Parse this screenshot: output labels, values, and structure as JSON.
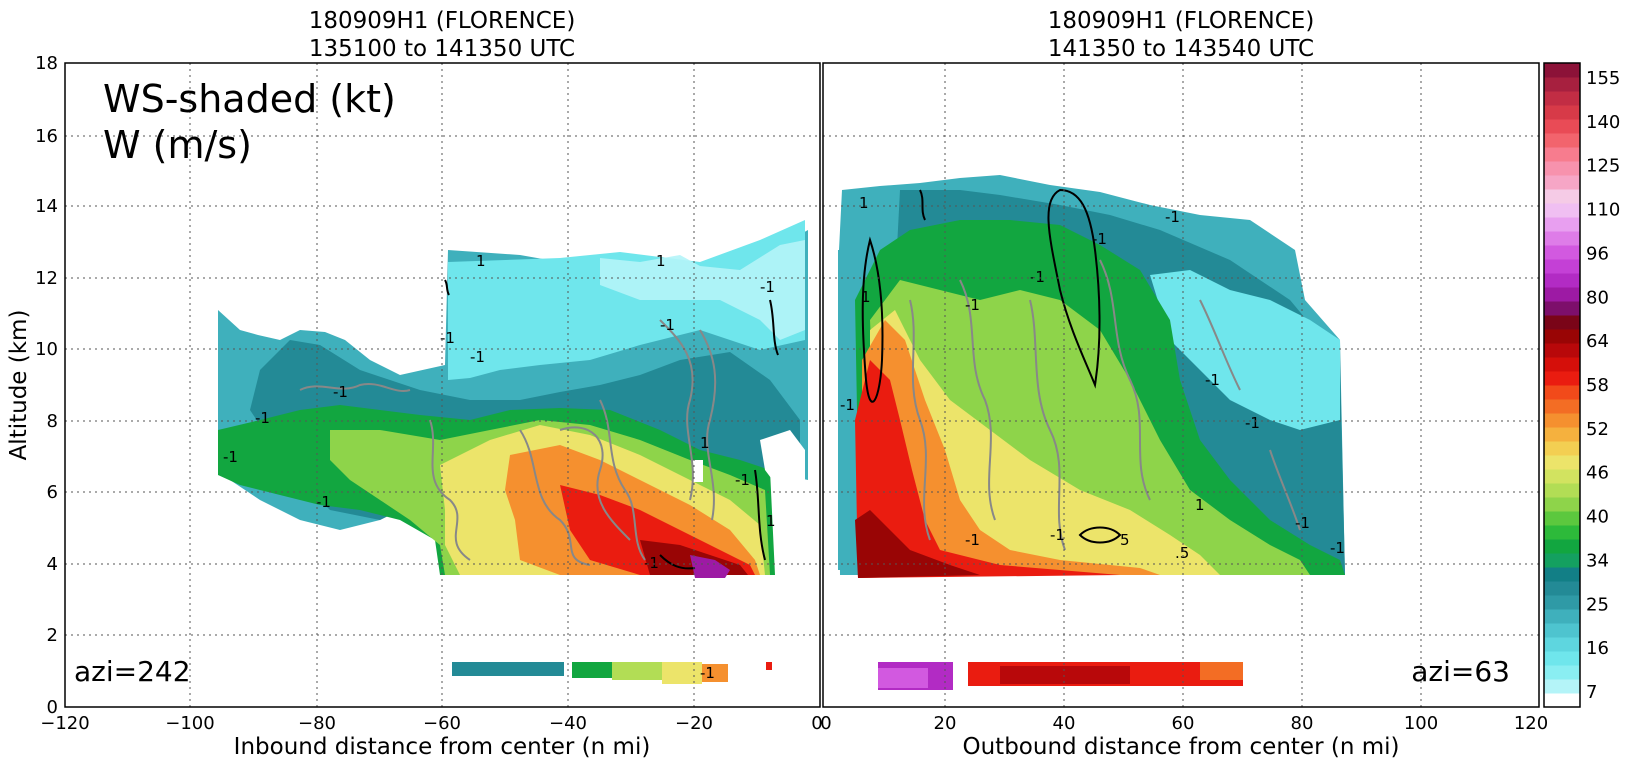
{
  "chart_data": [
    {
      "type": "heatmap",
      "title_line1": "180909H1 (FLORENCE)",
      "title_line2": "135100 to 141350 UTC",
      "annotation_line1": "WS-shaded (kt)",
      "annotation_line2": "W (m/s)",
      "corner_label": "azi=242",
      "xlabel": "Inbound distance from center (n mi)",
      "ylabel": "Altitude (km)",
      "xlim": [
        -120,
        0
      ],
      "ylim": [
        0,
        18
      ],
      "xticks": [
        "−120",
        "−100",
        "−80",
        "−60",
        "−40",
        "−20",
        "0"
      ],
      "yticks": [
        "0",
        "2",
        "4",
        "6",
        "8",
        "10",
        "12",
        "14",
        "16",
        "18"
      ],
      "grid": true,
      "contour_labels": [
        "1",
        "-1",
        "-1",
        "-1",
        "-1",
        "1",
        "-1",
        "-1",
        "-1",
        "-1",
        "1",
        "-1",
        "-1",
        "-1",
        "1"
      ]
    },
    {
      "type": "heatmap",
      "title_line1": "180909H1 (FLORENCE)",
      "title_line2": "141350 to 143540 UTC",
      "corner_label": "azi=63",
      "xlabel": "Outbound distance from center (n mi)",
      "xlim": [
        0,
        120
      ],
      "ylim": [
        0,
        18
      ],
      "xticks": [
        "0",
        "20",
        "40",
        "60",
        "80",
        "100",
        "120"
      ],
      "grid": true,
      "contour_labels": [
        "1",
        "1",
        "-1",
        "-1",
        "-1",
        "-1",
        "-1",
        "-1",
        "-1",
        "1",
        "-1",
        "5",
        "-1",
        "-1",
        "-1",
        ".5"
      ]
    }
  ],
  "colorbar": {
    "labels": [
      "7",
      "16",
      "25",
      "34",
      "40",
      "46",
      "52",
      "58",
      "64",
      "80",
      "96",
      "110",
      "125",
      "140",
      "155"
    ],
    "colors": [
      "#ffffff",
      "#b4f4f8",
      "#8aeef2",
      "#6fe6ec",
      "#5ed6df",
      "#4ec4cf",
      "#3fb0bc",
      "#2f9aa6",
      "#238a96",
      "#127f86",
      "#14a060",
      "#12a640",
      "#2dba3a",
      "#5cc83e",
      "#8ed44a",
      "#b2dd55",
      "#d2e360",
      "#ece46a",
      "#f3cf52",
      "#f5b13e",
      "#f5902f",
      "#f36d24",
      "#f24a1a",
      "#ea1c10",
      "#d50f0a",
      "#b8080a",
      "#990505",
      "#7a0518",
      "#7d0f6b",
      "#9d1aa4",
      "#b22bc4",
      "#c440d6",
      "#d259e0",
      "#de7ce8",
      "#e89ff0",
      "#f0bff2",
      "#f5cbe6",
      "#f6a6c6",
      "#f792ad",
      "#f77c8e",
      "#f2646d",
      "#e94b56",
      "#d73a48",
      "#c22d44",
      "#a7203f",
      "#8c1238"
    ]
  }
}
